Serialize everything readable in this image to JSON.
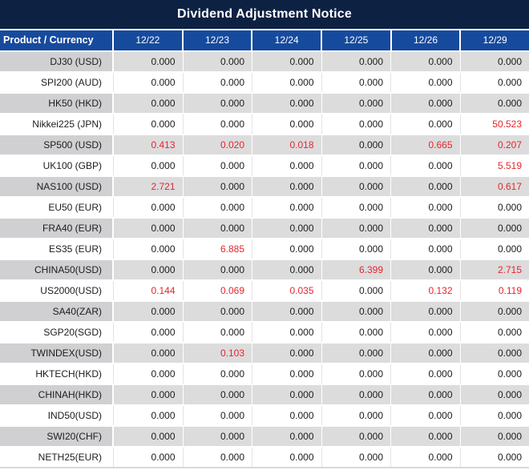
{
  "title": "Dividend Adjustment Notice",
  "colors": {
    "title_bg": "#0d2143",
    "header_bg": "#164a9d",
    "row_gray": "#dcdcdd",
    "product_gray": "#d0d0d3",
    "sep_light": "#e3e3e4",
    "text_dark": "#1c1c1c",
    "accent_red": "#e5262b"
  },
  "table": {
    "product_header": "Product / Currency",
    "date_headers": [
      "12/22",
      "12/23",
      "12/24",
      "12/25",
      "12/26",
      "12/29"
    ],
    "rows": [
      {
        "product": "DJ30 (USD)",
        "values": [
          "0.000",
          "0.000",
          "0.000",
          "0.000",
          "0.000",
          "0.000"
        ],
        "red": []
      },
      {
        "product": "SPI200 (AUD)",
        "values": [
          "0.000",
          "0.000",
          "0.000",
          "0.000",
          "0.000",
          "0.000"
        ],
        "red": []
      },
      {
        "product": "HK50 (HKD)",
        "values": [
          "0.000",
          "0.000",
          "0.000",
          "0.000",
          "0.000",
          "0.000"
        ],
        "red": []
      },
      {
        "product": "Nikkei225 (JPN)",
        "values": [
          "0.000",
          "0.000",
          "0.000",
          "0.000",
          "0.000",
          "50.523"
        ],
        "red": [
          5
        ]
      },
      {
        "product": "SP500 (USD)",
        "values": [
          "0.413",
          "0.020",
          "0.018",
          "0.000",
          "0.665",
          "0.207"
        ],
        "red": [
          0,
          1,
          2,
          4,
          5
        ]
      },
      {
        "product": "UK100 (GBP)",
        "values": [
          "0.000",
          "0.000",
          "0.000",
          "0.000",
          "0.000",
          "5.519"
        ],
        "red": [
          5
        ]
      },
      {
        "product": "NAS100 (USD)",
        "values": [
          "2.721",
          "0.000",
          "0.000",
          "0.000",
          "0.000",
          "0.617"
        ],
        "red": [
          0,
          5
        ]
      },
      {
        "product": "EU50 (EUR)",
        "values": [
          "0.000",
          "0.000",
          "0.000",
          "0.000",
          "0.000",
          "0.000"
        ],
        "red": []
      },
      {
        "product": "FRA40 (EUR)",
        "values": [
          "0.000",
          "0.000",
          "0.000",
          "0.000",
          "0.000",
          "0.000"
        ],
        "red": []
      },
      {
        "product": "ES35 (EUR)",
        "values": [
          "0.000",
          "6.885",
          "0.000",
          "0.000",
          "0.000",
          "0.000"
        ],
        "red": [
          1
        ]
      },
      {
        "product": "CHINA50(USD)",
        "values": [
          "0.000",
          "0.000",
          "0.000",
          "6.399",
          "0.000",
          "2.715"
        ],
        "red": [
          3,
          5
        ]
      },
      {
        "product": "US2000(USD)",
        "values": [
          "0.144",
          "0.069",
          "0.035",
          "0.000",
          "0.132",
          "0.119"
        ],
        "red": [
          0,
          1,
          2,
          4,
          5
        ]
      },
      {
        "product": "SA40(ZAR)",
        "values": [
          "0.000",
          "0.000",
          "0.000",
          "0.000",
          "0.000",
          "0.000"
        ],
        "red": []
      },
      {
        "product": "SGP20(SGD)",
        "values": [
          "0.000",
          "0.000",
          "0.000",
          "0.000",
          "0.000",
          "0.000"
        ],
        "red": []
      },
      {
        "product": "TWINDEX(USD)",
        "values": [
          "0.000",
          "0.103",
          "0.000",
          "0.000",
          "0.000",
          "0.000"
        ],
        "red": [
          1
        ]
      },
      {
        "product": "HKTECH(HKD)",
        "values": [
          "0.000",
          "0.000",
          "0.000",
          "0.000",
          "0.000",
          "0.000"
        ],
        "red": []
      },
      {
        "product": "CHINAH(HKD)",
        "values": [
          "0.000",
          "0.000",
          "0.000",
          "0.000",
          "0.000",
          "0.000"
        ],
        "red": []
      },
      {
        "product": "IND50(USD)",
        "values": [
          "0.000",
          "0.000",
          "0.000",
          "0.000",
          "0.000",
          "0.000"
        ],
        "red": []
      },
      {
        "product": "SWI20(CHF)",
        "values": [
          "0.000",
          "0.000",
          "0.000",
          "0.000",
          "0.000",
          "0.000"
        ],
        "red": []
      },
      {
        "product": "NETH25(EUR)",
        "values": [
          "0.000",
          "0.000",
          "0.000",
          "0.000",
          "0.000",
          "0.000"
        ],
        "red": []
      }
    ]
  }
}
